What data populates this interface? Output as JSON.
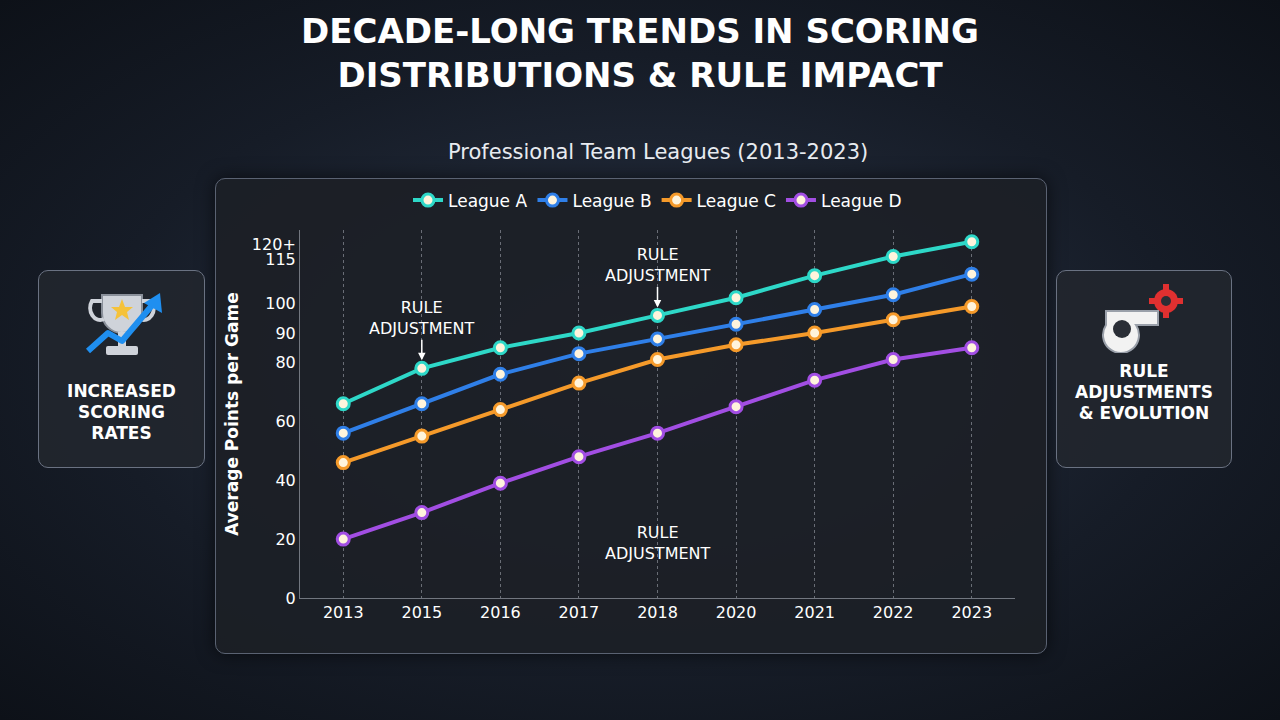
{
  "chart_data": {
    "type": "line",
    "title": "DECADE-LONG TRENDS IN SCORING DISTRIBUTIONS & RULE IMPACT",
    "subtitle": "Professional Team Leagues (2013-2023)",
    "y_label": "Average Points per Game",
    "categories": [
      "2013",
      "2015",
      "2016",
      "2017",
      "2018",
      "2020",
      "2021",
      "2022",
      "2023"
    ],
    "series": [
      {
        "name": "League A",
        "color": "#2ed8c8",
        "values": [
          66,
          78,
          85,
          90,
          96,
          102,
          109.5,
          116,
          121
        ]
      },
      {
        "name": "League B",
        "color": "#2f7fe8",
        "values": [
          56,
          66,
          76,
          83,
          88,
          93,
          98,
          103,
          110
        ]
      },
      {
        "name": "League C",
        "color": "#f59a2a",
        "values": [
          46,
          55,
          64,
          73,
          81,
          86,
          90,
          94.5,
          99
        ]
      },
      {
        "name": "League D",
        "color": "#a24ee3",
        "values": [
          20,
          29,
          39,
          48,
          56,
          65,
          74,
          81,
          85
        ]
      }
    ],
    "ylim": [
      0,
      125
    ],
    "yticks": [
      0,
      20,
      40,
      60,
      80,
      90,
      100,
      115,
      {
        "value": 120,
        "label": "120+"
      }
    ],
    "grid": true,
    "legend": "top",
    "marker": "circle",
    "annotations": [
      {
        "text": "RULE ADJUSTMENT",
        "x": "2015",
        "series": "League A"
      },
      {
        "text": "RULE ADJUSTMENT",
        "x": "2018",
        "series": "League A"
      },
      {
        "text": "RULE ADJUSTMENT",
        "x": "2018"
      }
    ]
  },
  "side_panels": [
    {
      "text": "INCREASED SCORING RATES"
    },
    {
      "text": "RULE ADJUSTMENTS & EVOLUTION"
    }
  ]
}
